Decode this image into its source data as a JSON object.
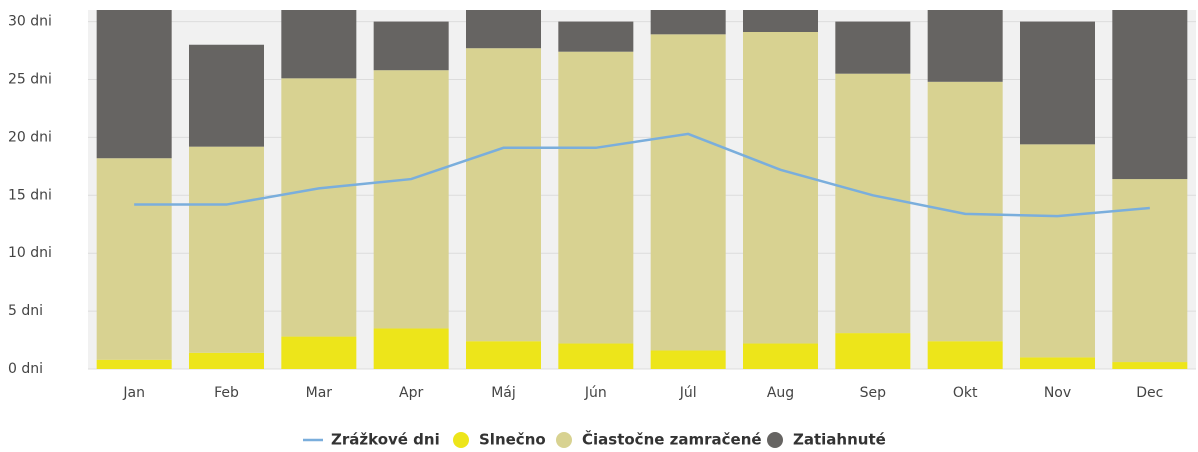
{
  "chart_data": {
    "type": "bar",
    "categories": [
      "Jan",
      "Feb",
      "Mar",
      "Apr",
      "Máj",
      "Jún",
      "Júl",
      "Aug",
      "Sep",
      "Okt",
      "Nov",
      "Dec"
    ],
    "stacked": true,
    "series": [
      {
        "name": "Slnečno",
        "color": "#ede51a",
        "values": [
          0.8,
          1.4,
          2.8,
          3.5,
          2.4,
          2.2,
          1.6,
          2.2,
          3.1,
          2.4,
          1.0,
          0.6
        ]
      },
      {
        "name": "Čiastočne zamračené",
        "color": "#d8d291",
        "values": [
          17.4,
          17.8,
          22.3,
          22.3,
          25.3,
          25.2,
          27.3,
          26.9,
          22.4,
          22.4,
          18.4,
          15.8
        ]
      },
      {
        "name": "Zatiahnuté",
        "color": "#666462",
        "values": [
          12.8,
          8.8,
          5.9,
          4.2,
          3.3,
          2.6,
          2.1,
          1.9,
          4.5,
          6.2,
          10.6,
          14.6
        ]
      },
      {
        "name": "Zrážkové dni",
        "type": "line",
        "color": "#7aaedc",
        "values": [
          14.2,
          14.2,
          15.6,
          16.4,
          19.1,
          19.1,
          20.3,
          17.2,
          15.0,
          13.4,
          13.2,
          13.9
        ]
      }
    ],
    "ylim": [
      0,
      31
    ],
    "yticks": [
      {
        "value": 0,
        "label": "0 dni"
      },
      {
        "value": 5,
        "label": "5 dni"
      },
      {
        "value": 10,
        "label": "10 dni"
      },
      {
        "value": 15,
        "label": "15 dni"
      },
      {
        "value": 20,
        "label": "20 dni"
      },
      {
        "value": 25,
        "label": "25 dni"
      },
      {
        "value": 30,
        "label": "30 dni"
      }
    ],
    "grid": true,
    "legend": "bottom"
  }
}
